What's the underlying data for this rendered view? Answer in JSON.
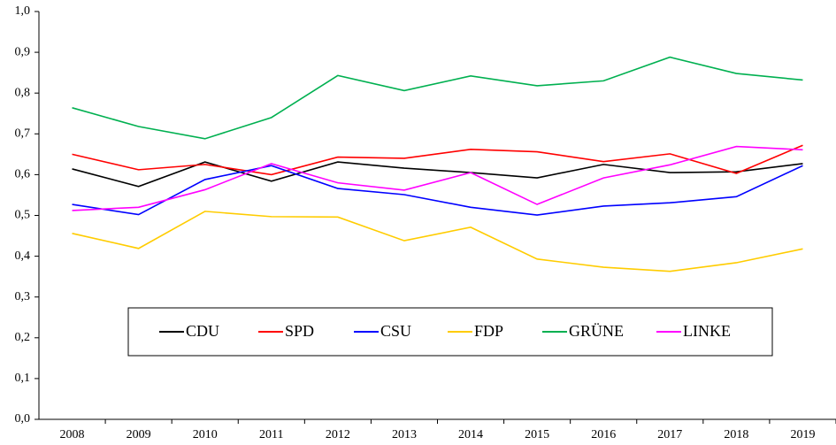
{
  "chart_data": {
    "type": "line",
    "categories": [
      "2008",
      "2009",
      "2010",
      "2011",
      "2012",
      "2013",
      "2014",
      "2015",
      "2016",
      "2017",
      "2018",
      "2019"
    ],
    "series": [
      {
        "name": "CDU",
        "color": "#000000",
        "values": [
          0.614,
          0.571,
          0.631,
          0.584,
          0.631,
          0.616,
          0.605,
          0.592,
          0.625,
          0.605,
          0.607,
          0.627
        ]
      },
      {
        "name": "SPD",
        "color": "#ff0000",
        "values": [
          0.65,
          0.612,
          0.625,
          0.6,
          0.643,
          0.64,
          0.662,
          0.656,
          0.632,
          0.651,
          0.603,
          0.672
        ]
      },
      {
        "name": "CSU",
        "color": "#0000ff",
        "values": [
          0.527,
          0.502,
          0.588,
          0.622,
          0.566,
          0.551,
          0.52,
          0.501,
          0.523,
          0.531,
          0.546,
          0.622
        ]
      },
      {
        "name": "FDP",
        "color": "#ffcc00",
        "values": [
          0.456,
          0.419,
          0.51,
          0.497,
          0.496,
          0.438,
          0.471,
          0.393,
          0.373,
          0.363,
          0.384,
          0.418
        ]
      },
      {
        "name": "GRÜNE",
        "color": "#00b050",
        "values": [
          0.764,
          0.718,
          0.688,
          0.74,
          0.843,
          0.806,
          0.842,
          0.818,
          0.83,
          0.888,
          0.848,
          0.832
        ]
      },
      {
        "name": "LINKE",
        "color": "#ff00ff",
        "values": [
          0.512,
          0.52,
          0.563,
          0.627,
          0.58,
          0.562,
          0.605,
          0.527,
          0.592,
          0.624,
          0.669,
          0.661
        ]
      }
    ],
    "ylim": [
      0,
      1
    ],
    "yticks": [
      {
        "value": 0,
        "label": "0,0"
      },
      {
        "value": 0.1,
        "label": "0,1"
      },
      {
        "value": 0.2,
        "label": "0,2"
      },
      {
        "value": 0.3,
        "label": "0,3"
      },
      {
        "value": 0.4,
        "label": "0,4"
      },
      {
        "value": 0.5,
        "label": "0,5"
      },
      {
        "value": 0.6,
        "label": "0,6"
      },
      {
        "value": 0.7,
        "label": "0,7"
      },
      {
        "value": 0.8,
        "label": "0,8"
      },
      {
        "value": 0.9,
        "label": "0,9"
      },
      {
        "value": 1,
        "label": "1,0"
      }
    ],
    "grid": false
  }
}
